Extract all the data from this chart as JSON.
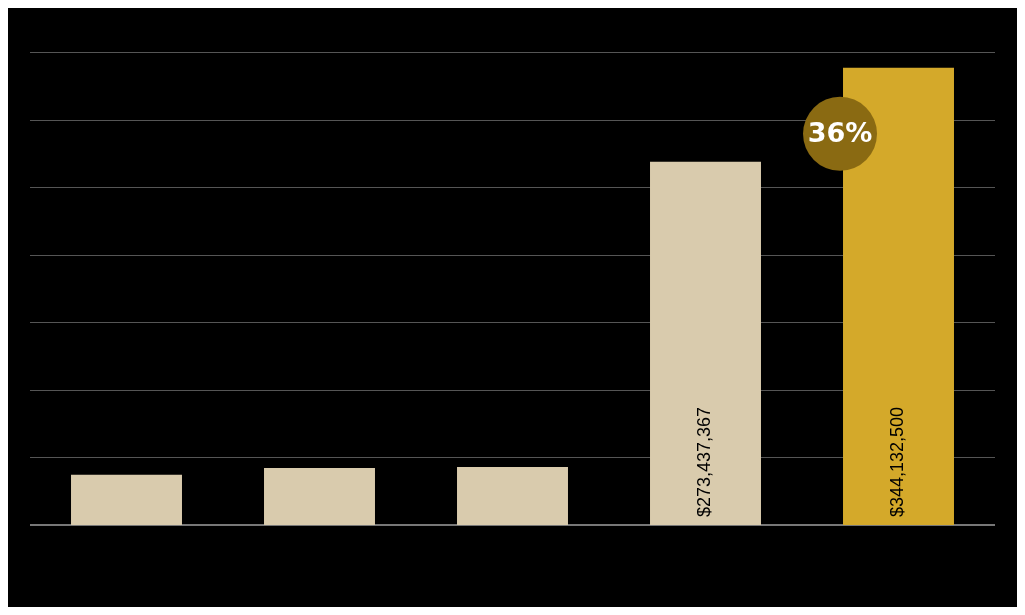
{
  "chart_data": {
    "type": "bar",
    "categories": [
      null,
      null,
      null,
      null,
      null
    ],
    "values": [
      37800000,
      42900000,
      43600000,
      273437367,
      344132500
    ],
    "colors": [
      "#d9cbad",
      "#d9cbad",
      "#d9cbad",
      "#d9cbad",
      "#d4a92a"
    ],
    "value_labels": [
      null,
      null,
      null,
      "$273,437,367",
      "$344,132,500"
    ],
    "tick_labels": false,
    "grid": "y",
    "legend": false,
    "annotations": [
      "36%"
    ]
  }
}
